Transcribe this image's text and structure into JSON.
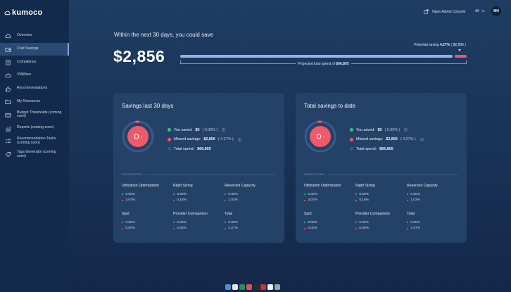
{
  "brand": {
    "name": "kumoco"
  },
  "topbar": {
    "admin_console": "Open Admin Console",
    "filter": "All",
    "avatar_initials": "MH"
  },
  "sidebar": {
    "items": [
      {
        "label": "Overview",
        "icon": "cloud-icon",
        "active": false
      },
      {
        "label": "Cost Savings",
        "icon": "wallet-icon",
        "active": true
      },
      {
        "label": "Compliance",
        "icon": "clipboard-icon",
        "active": false
      },
      {
        "label": "VMWare",
        "icon": "cloud-outline-icon",
        "active": false
      },
      {
        "label": "Recommendations",
        "icon": "thumbs-up-icon",
        "active": false
      },
      {
        "label": "My Resources",
        "icon": "folder-icon",
        "active": false
      },
      {
        "label": "Budget Thresholds (coming soon)",
        "icon": "wallet-outline-icon",
        "active": false
      },
      {
        "label": "Reports (coming soon)",
        "icon": "bar-chart-icon",
        "active": false
      },
      {
        "label": "Recommendation Tasks (coming soon)",
        "icon": "list-icon",
        "active": false
      },
      {
        "label": "Tags Generator (coming soon)",
        "icon": "tag-icon",
        "active": false
      }
    ]
  },
  "savings": {
    "headline": "Within the next 30 days, you could save",
    "amount": "$2,856",
    "potential_label": "Potential saving ",
    "potential_percent": "4.27%",
    "potential_amount": " ( $2,856 )",
    "projected_label": "Projected total spend of ",
    "projected_amount": "$66,805",
    "saved_fraction": 0.9573,
    "colors": {
      "blue": "#8fb3e8",
      "red": "#f0566a",
      "green": "#39c57d"
    }
  },
  "cards": [
    {
      "title": "Savings last 30 days",
      "donut_letter": "D",
      "donut_tag": "+",
      "legend": [
        {
          "label": "You saved:",
          "value": "$0",
          "extra": "( 0.00% )",
          "color": "#39c57d"
        },
        {
          "label": "Missed savings:",
          "value": "$2,856",
          "extra": "( 4.27% )",
          "color": "#f0566a"
        },
        {
          "label": "Total spend:",
          "value": "$66,805",
          "extra": "",
          "color": "#3a5a86"
        }
      ],
      "breakdown_label": "BREAKDOWN",
      "breakdown": [
        {
          "title": "Utilization Optimization",
          "saved": "0.00%",
          "missed": "3.07%"
        },
        {
          "title": "Right Sizing",
          "saved": "0.00%",
          "missed": "0.18%"
        },
        {
          "title": "Reserved Capacity",
          "saved": "0.00%",
          "missed": "1.03%"
        },
        {
          "title": "Spot",
          "saved": "0.00%",
          "missed": "0.00%"
        },
        {
          "title": "Provider Comparison",
          "saved": "0.00%",
          "missed": "0.00%"
        },
        {
          "title": "Total",
          "saved": "0.00%",
          "missed": "4.27%"
        }
      ]
    },
    {
      "title": "Total savings to date",
      "donut_letter": "D",
      "donut_tag": "+",
      "legend": [
        {
          "label": "You saved:",
          "value": "$0",
          "extra": "( 0.00% )",
          "color": "#39c57d"
        },
        {
          "label": "Missed savings:",
          "value": "$2,856",
          "extra": "( 4.27% )",
          "color": "#f0566a"
        },
        {
          "label": "Total spend:",
          "value": "$66,805",
          "extra": "",
          "color": "#3a5a86"
        }
      ],
      "breakdown_label": "BREAKDOWN",
      "breakdown": [
        {
          "title": "Utilization Optimization",
          "saved": "0.00%",
          "missed": "3.07%"
        },
        {
          "title": "Right Sizing",
          "saved": "0.00%",
          "missed": "0.18%"
        },
        {
          "title": "Reserved Capacity",
          "saved": "0.00%",
          "missed": "1.03%"
        },
        {
          "title": "Spot",
          "saved": "0.00%",
          "missed": "0.00%"
        },
        {
          "title": "Provider Comparison",
          "saved": "0.00%",
          "missed": "0.00%"
        },
        {
          "title": "Total",
          "saved": "0.00%",
          "missed": "4.27%"
        }
      ]
    }
  ],
  "dock": {
    "apps": [
      "finder-icon",
      "chrome-icon",
      "excel-icon",
      "powerpoint-icon",
      "terminal-icon",
      "slack-icon",
      "notes-icon",
      "trash-icon"
    ]
  }
}
